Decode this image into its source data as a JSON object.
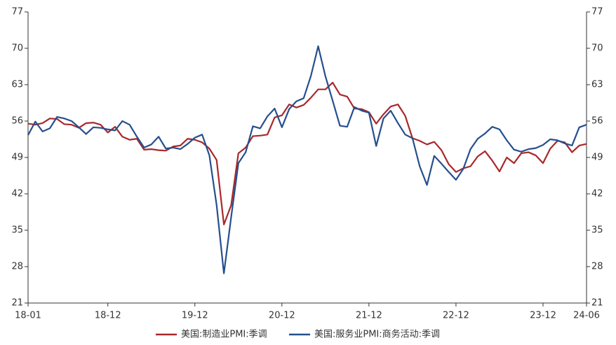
{
  "chart_data": {
    "type": "line",
    "categories": [
      "18-01",
      null,
      null,
      null,
      null,
      null,
      null,
      null,
      null,
      null,
      null,
      "18-12",
      null,
      null,
      null,
      null,
      null,
      null,
      null,
      null,
      null,
      null,
      null,
      "19-12",
      null,
      null,
      null,
      null,
      null,
      null,
      null,
      null,
      null,
      null,
      null,
      "20-12",
      null,
      null,
      null,
      null,
      null,
      null,
      null,
      null,
      null,
      null,
      null,
      "21-12",
      null,
      null,
      null,
      null,
      null,
      null,
      null,
      null,
      null,
      null,
      null,
      "22-12",
      null,
      null,
      null,
      null,
      null,
      null,
      null,
      null,
      null,
      null,
      null,
      "23-12",
      null,
      null,
      null,
      null,
      null,
      "24-06"
    ],
    "series": [
      {
        "name": "美国:制造业PMI:季调",
        "color": "#a8282b",
        "values": [
          55.5,
          55.3,
          55.6,
          56.5,
          56.4,
          55.4,
          55.3,
          54.7,
          55.6,
          55.7,
          55.3,
          53.8,
          54.9,
          53.0,
          52.4,
          52.6,
          50.5,
          50.6,
          50.4,
          50.3,
          51.1,
          51.3,
          52.6,
          52.4,
          51.9,
          50.7,
          48.5,
          36.1,
          39.8,
          49.8,
          50.9,
          53.1,
          53.2,
          53.4,
          56.7,
          57.1,
          59.2,
          58.6,
          59.1,
          60.5,
          62.1,
          62.1,
          63.4,
          61.1,
          60.7,
          58.4,
          58.3,
          57.7,
          55.5,
          57.3,
          58.8,
          59.2,
          57.0,
          52.7,
          52.2,
          51.5,
          52.0,
          50.4,
          47.7,
          46.2,
          46.9,
          47.3,
          49.2,
          50.2,
          48.4,
          46.3,
          49.0,
          47.9,
          49.8,
          50.0,
          49.4,
          47.9,
          50.7,
          52.2,
          51.9,
          50.0,
          51.3,
          51.6
        ]
      },
      {
        "name": "美国:服务业PMI:商务活动:季调",
        "color": "#254f8e",
        "values": [
          53.3,
          55.9,
          54.0,
          54.6,
          56.8,
          56.5,
          56.0,
          54.8,
          53.5,
          54.8,
          54.7,
          54.4,
          54.2,
          56.0,
          55.3,
          53.0,
          50.9,
          51.5,
          53.0,
          50.7,
          50.9,
          50.6,
          51.6,
          52.8,
          53.4,
          49.4,
          39.8,
          26.7,
          37.5,
          47.9,
          50.0,
          55.0,
          54.6,
          56.9,
          58.4,
          54.8,
          58.3,
          59.8,
          60.4,
          64.7,
          70.4,
          64.6,
          59.9,
          55.1,
          54.9,
          58.7,
          58.0,
          57.6,
          51.2,
          56.5,
          58.0,
          55.6,
          53.4,
          52.7,
          47.3,
          43.7,
          49.3,
          47.8,
          46.2,
          44.7,
          46.8,
          50.6,
          52.6,
          53.6,
          54.9,
          54.4,
          52.3,
          50.5,
          50.1,
          50.6,
          50.8,
          51.4,
          52.5,
          52.3,
          51.7,
          51.3,
          54.8,
          55.3
        ]
      }
    ],
    "ylim": [
      21,
      77
    ],
    "yticks": [
      21,
      28,
      35,
      42,
      49,
      56,
      63,
      70,
      77
    ],
    "y2lim": [
      21,
      77
    ],
    "y2ticks": [
      21,
      28,
      35,
      42,
      49,
      56,
      63,
      70,
      77
    ],
    "grid": false,
    "legend": "bottom"
  }
}
